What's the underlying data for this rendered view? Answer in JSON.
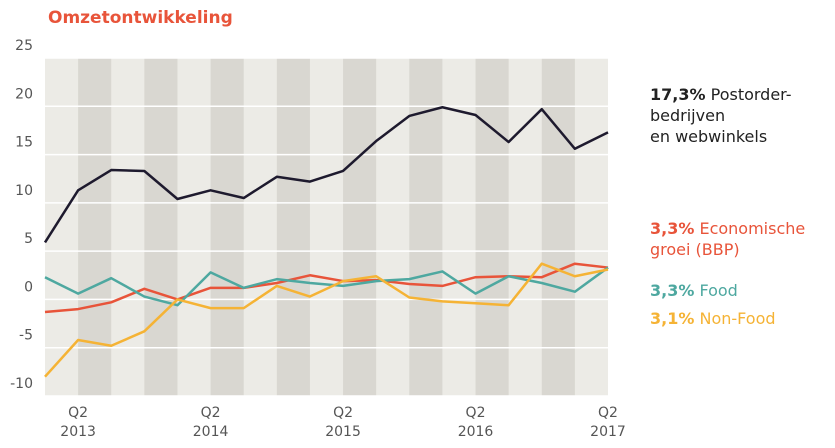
{
  "chart_data": {
    "type": "line",
    "title": "Omzetontwikkeling",
    "categories": [
      null,
      "Q2 2013",
      null,
      null,
      null,
      "Q2 2014",
      null,
      null,
      null,
      "Q2 2015",
      null,
      null,
      null,
      "Q2 2016",
      null,
      null,
      null,
      "Q2 2017"
    ],
    "ylim": [
      -10,
      25
    ],
    "yticks": [
      -10,
      -5,
      0,
      5,
      10,
      15,
      20,
      25
    ],
    "grid": true,
    "series": [
      {
        "name": "Postorder-\nbedrijven\nen webwinkels",
        "end_label": "17,3%",
        "color": "#1e1a2e",
        "values": [
          5.9,
          11.3,
          13.4,
          13.3,
          10.4,
          11.3,
          10.5,
          12.7,
          12.2,
          13.3,
          16.4,
          19.0,
          19.9,
          19.1,
          16.3,
          19.7,
          15.6,
          17.3
        ]
      },
      {
        "name": "Economische\ngroei (BBP)",
        "end_label": "3,3%",
        "color": "#e8543a",
        "values": [
          -1.3,
          -1.0,
          -0.3,
          1.1,
          0.0,
          1.2,
          1.2,
          1.7,
          2.5,
          1.9,
          2.0,
          1.6,
          1.4,
          2.3,
          2.4,
          2.3,
          3.7,
          3.3
        ]
      },
      {
        "name": "Food",
        "end_label": "3,3%",
        "color": "#4ea8a0",
        "values": [
          2.3,
          0.6,
          2.2,
          0.3,
          -0.6,
          2.8,
          1.2,
          2.1,
          1.7,
          1.4,
          1.9,
          2.1,
          2.9,
          0.6,
          2.4,
          1.7,
          0.8,
          3.3
        ]
      },
      {
        "name": "Non-Food",
        "end_label": "3,1%",
        "color": "#f5b335",
        "values": [
          -8.0,
          -4.2,
          -4.8,
          -3.3,
          0.0,
          -0.9,
          -0.9,
          1.4,
          0.3,
          1.9,
          2.4,
          0.2,
          -0.2,
          -0.4,
          -0.6,
          3.7,
          2.4,
          3.1
        ]
      }
    ]
  }
}
